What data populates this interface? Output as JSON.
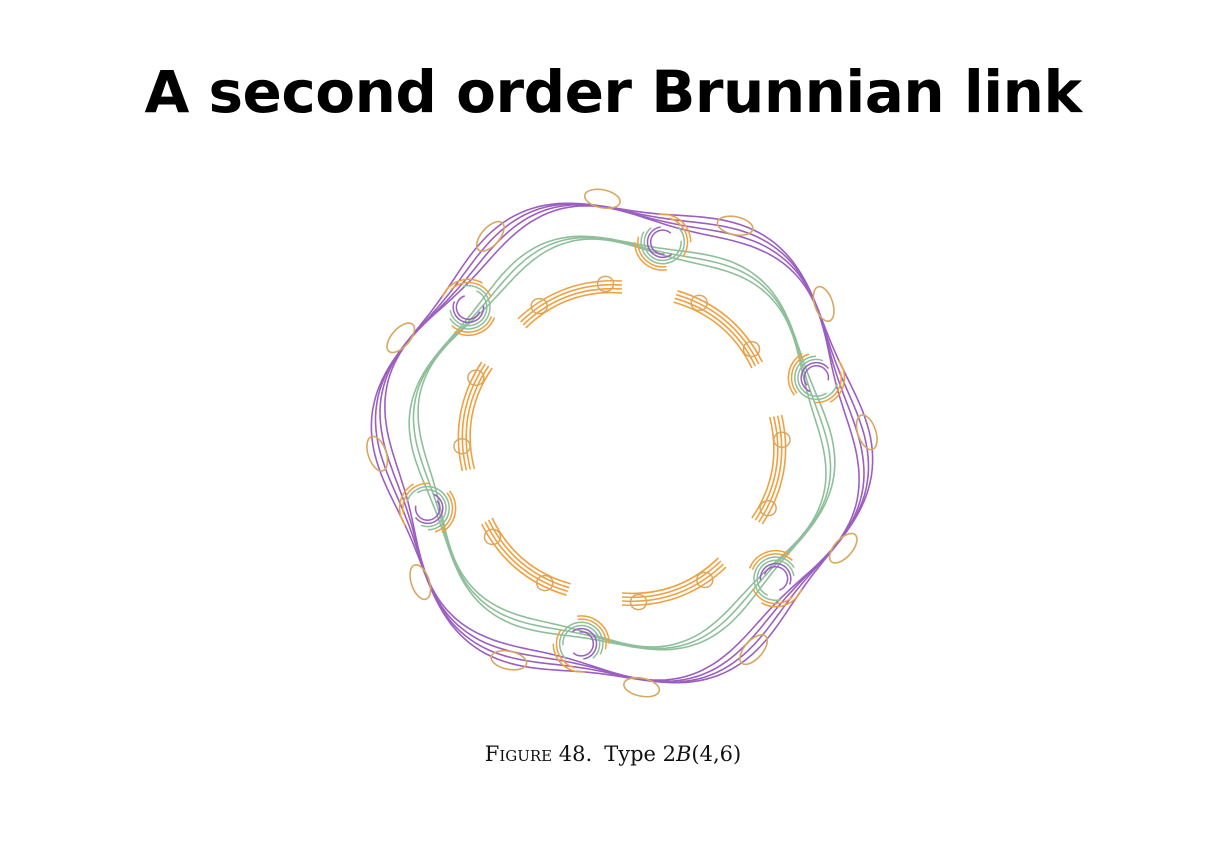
{
  "title": "A second order Brunnian link",
  "figure": {
    "caption_label": "Figure 48.",
    "caption_type_prefix": "Type 2",
    "caption_type_var": "B",
    "caption_type_args": "(4,6)",
    "colors": {
      "purple": "#9b5fc0",
      "green": "#8fbf9a",
      "orange": "#f0a040",
      "tan": "#d8a860"
    },
    "link_components": 4,
    "rotational_symmetry": 6
  }
}
